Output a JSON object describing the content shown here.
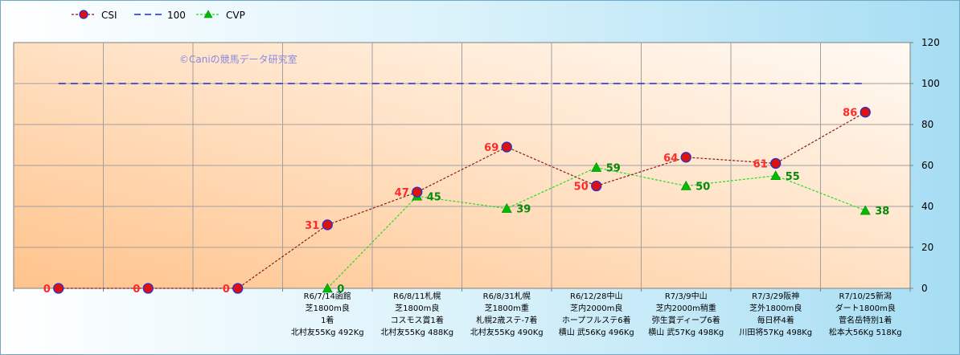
{
  "chart_data": {
    "type": "line",
    "watermark": "©Caniの競馬データ研究室",
    "ylim": [
      0,
      120
    ],
    "yticks": [
      "0",
      "20",
      "40",
      "60",
      "80",
      "100",
      "120"
    ],
    "legend_position": "top-left",
    "grid": true,
    "categories": [
      [],
      [],
      [],
      [
        "R6/7/14函館",
        "芝1800m良",
        "1着",
        "北村友55Kg 492Kg"
      ],
      [
        "R6/8/11札幌",
        "芝1800m良",
        "コスモス賞1着",
        "北村友55Kg 488Kg"
      ],
      [
        "R6/8/31札幌",
        "芝1800m重",
        "札幌2歳ステ-7着",
        "北村友55Kg 490Kg"
      ],
      [
        "R6/12/28中山",
        "芝内2000m良",
        "ホープフルステ6着",
        "横山 武56Kg 496Kg"
      ],
      [
        "R7/3/9中山",
        "芝内2000m稍重",
        "弥生賞ディープ6着",
        "横山 武57Kg 498Kg"
      ],
      [
        "R7/3/29阪神",
        "芝外1800m良",
        "毎日杯4着",
        "川田将57Kg 498Kg"
      ],
      [
        "R7/10/25新潟",
        "ダート1800m良",
        "菅名岳特別1着",
        "松本大56Kg 518Kg"
      ]
    ],
    "series": [
      {
        "name": "CSI",
        "values": [
          0,
          0,
          0,
          31,
          47,
          69,
          50,
          64,
          61,
          86
        ],
        "labels": [
          "0",
          "0",
          "0",
          "31",
          "47",
          "69",
          "50",
          "64",
          "61",
          "86"
        ],
        "color": "#8b1a1a",
        "marker_fill": "#dd1111",
        "marker_edge": "#2233cc"
      },
      {
        "name": "100",
        "values": [
          100,
          100,
          100,
          100,
          100,
          100,
          100,
          100,
          100,
          100
        ],
        "color": "#1a2acc"
      },
      {
        "name": "CVP",
        "values": [
          null,
          null,
          null,
          0,
          45,
          39,
          59,
          50,
          55,
          38
        ],
        "labels": [
          "",
          "",
          "",
          "0",
          "45",
          "39",
          "59",
          "50",
          "55",
          "38"
        ],
        "color": "#22dd22",
        "marker_fill": "#00bb00"
      }
    ]
  }
}
